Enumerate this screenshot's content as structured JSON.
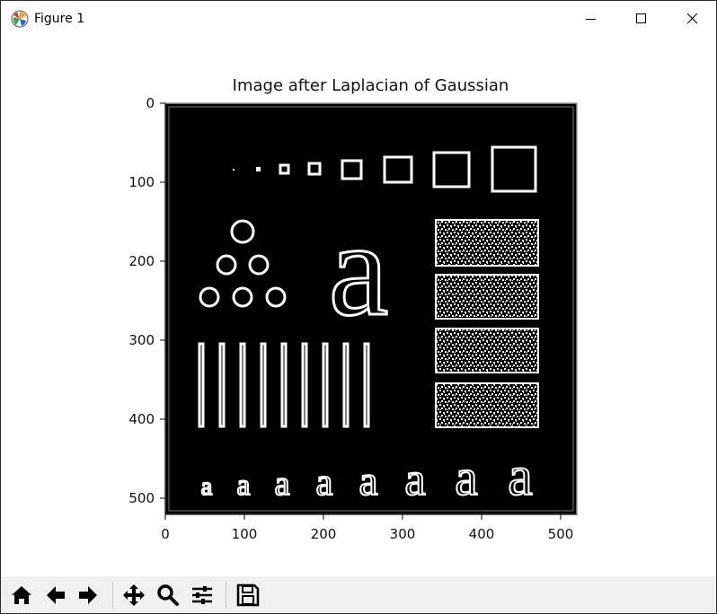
{
  "window": {
    "title": "Figure 1",
    "icons": {
      "app": "matplotlib-logo-icon",
      "minimize": "minimize-icon",
      "maximize": "maximize-icon",
      "close": "close-icon"
    }
  },
  "plot": {
    "title": "Image after Laplacian of Gaussian",
    "x_ticks": [
      "0",
      "100",
      "200",
      "300",
      "400",
      "500"
    ],
    "y_ticks": [
      "0",
      "100",
      "200",
      "300",
      "400",
      "500"
    ],
    "image_content": {
      "row1": "eight squares of increasing size",
      "row2": "circles arranged in triangle, large letter a, noisy rectangles",
      "row3": "nine vertical bars",
      "letters": [
        "a",
        "a",
        "a",
        "a",
        "a",
        "a",
        "a",
        "a"
      ]
    }
  },
  "toolbar": {
    "buttons": [
      "home-icon",
      "back-arrow-icon",
      "forward-arrow-icon",
      "pan-icon",
      "zoom-icon",
      "configure-subplots-icon",
      "save-icon"
    ]
  }
}
